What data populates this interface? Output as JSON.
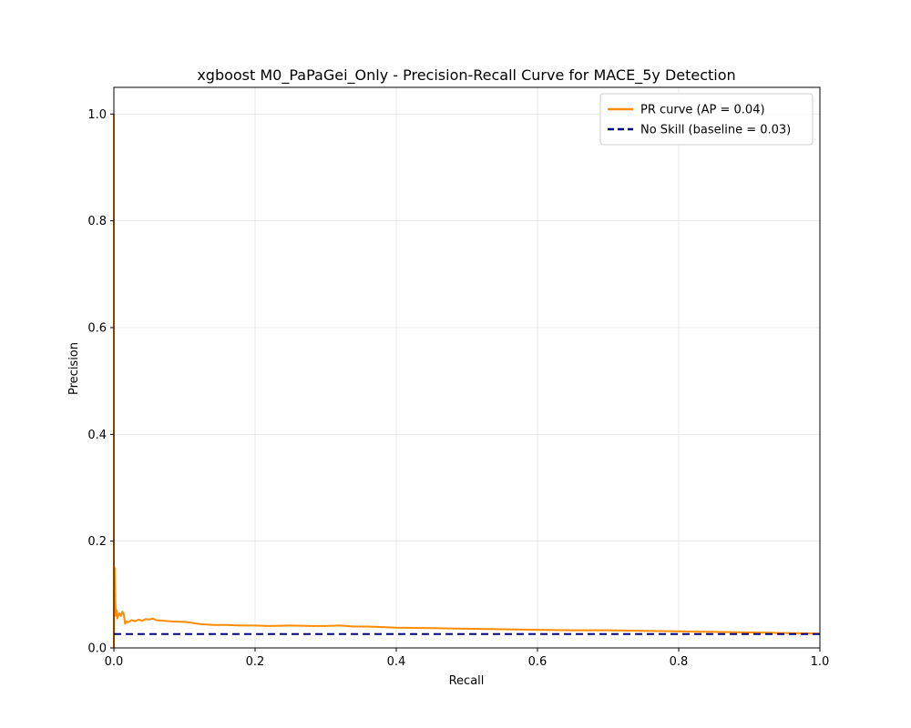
{
  "chart_data": {
    "type": "line",
    "title": "xgboost M0_PaPaGei_Only - Precision-Recall Curve for MACE_5y Detection",
    "xlabel": "Recall",
    "ylabel": "Precision",
    "xlim": [
      0.0,
      1.0
    ],
    "ylim": [
      0.0,
      1.05
    ],
    "xticks": [
      "0.0",
      "0.2",
      "0.4",
      "0.6",
      "0.8",
      "1.0"
    ],
    "yticks": [
      "0.0",
      "0.2",
      "0.4",
      "0.6",
      "0.8",
      "1.0"
    ],
    "grid": true,
    "legend_position": "top-right",
    "series": [
      {
        "name": "PR curve (AP = 0.04)",
        "color": "#ff8c00",
        "style": "solid",
        "x": [
          0.0,
          0.0,
          0.001,
          0.002,
          0.003,
          0.004,
          0.005,
          0.006,
          0.008,
          0.01,
          0.012,
          0.014,
          0.016,
          0.018,
          0.02,
          0.025,
          0.03,
          0.035,
          0.04,
          0.045,
          0.05,
          0.055,
          0.06,
          0.07,
          0.08,
          0.09,
          0.1,
          0.11,
          0.12,
          0.14,
          0.16,
          0.18,
          0.2,
          0.22,
          0.25,
          0.28,
          0.3,
          0.32,
          0.34,
          0.36,
          0.38,
          0.4,
          0.45,
          0.5,
          0.55,
          0.6,
          0.65,
          0.7,
          0.75,
          0.8,
          0.85,
          0.9,
          0.95,
          1.0
        ],
        "y": [
          1.0,
          0.0,
          0.15,
          0.09,
          0.06,
          0.07,
          0.055,
          0.06,
          0.065,
          0.06,
          0.068,
          0.064,
          0.045,
          0.05,
          0.048,
          0.052,
          0.05,
          0.053,
          0.051,
          0.054,
          0.053,
          0.055,
          0.052,
          0.051,
          0.05,
          0.049,
          0.049,
          0.047,
          0.045,
          0.043,
          0.043,
          0.042,
          0.042,
          0.041,
          0.042,
          0.041,
          0.041,
          0.042,
          0.04,
          0.04,
          0.039,
          0.038,
          0.037,
          0.036,
          0.035,
          0.034,
          0.033,
          0.033,
          0.032,
          0.031,
          0.03,
          0.029,
          0.028,
          0.027
        ]
      },
      {
        "name": "No Skill (baseline = 0.03)",
        "color": "#000080",
        "style": "dashed",
        "x": [
          0.0,
          1.0
        ],
        "y": [
          0.026,
          0.026
        ]
      }
    ]
  }
}
